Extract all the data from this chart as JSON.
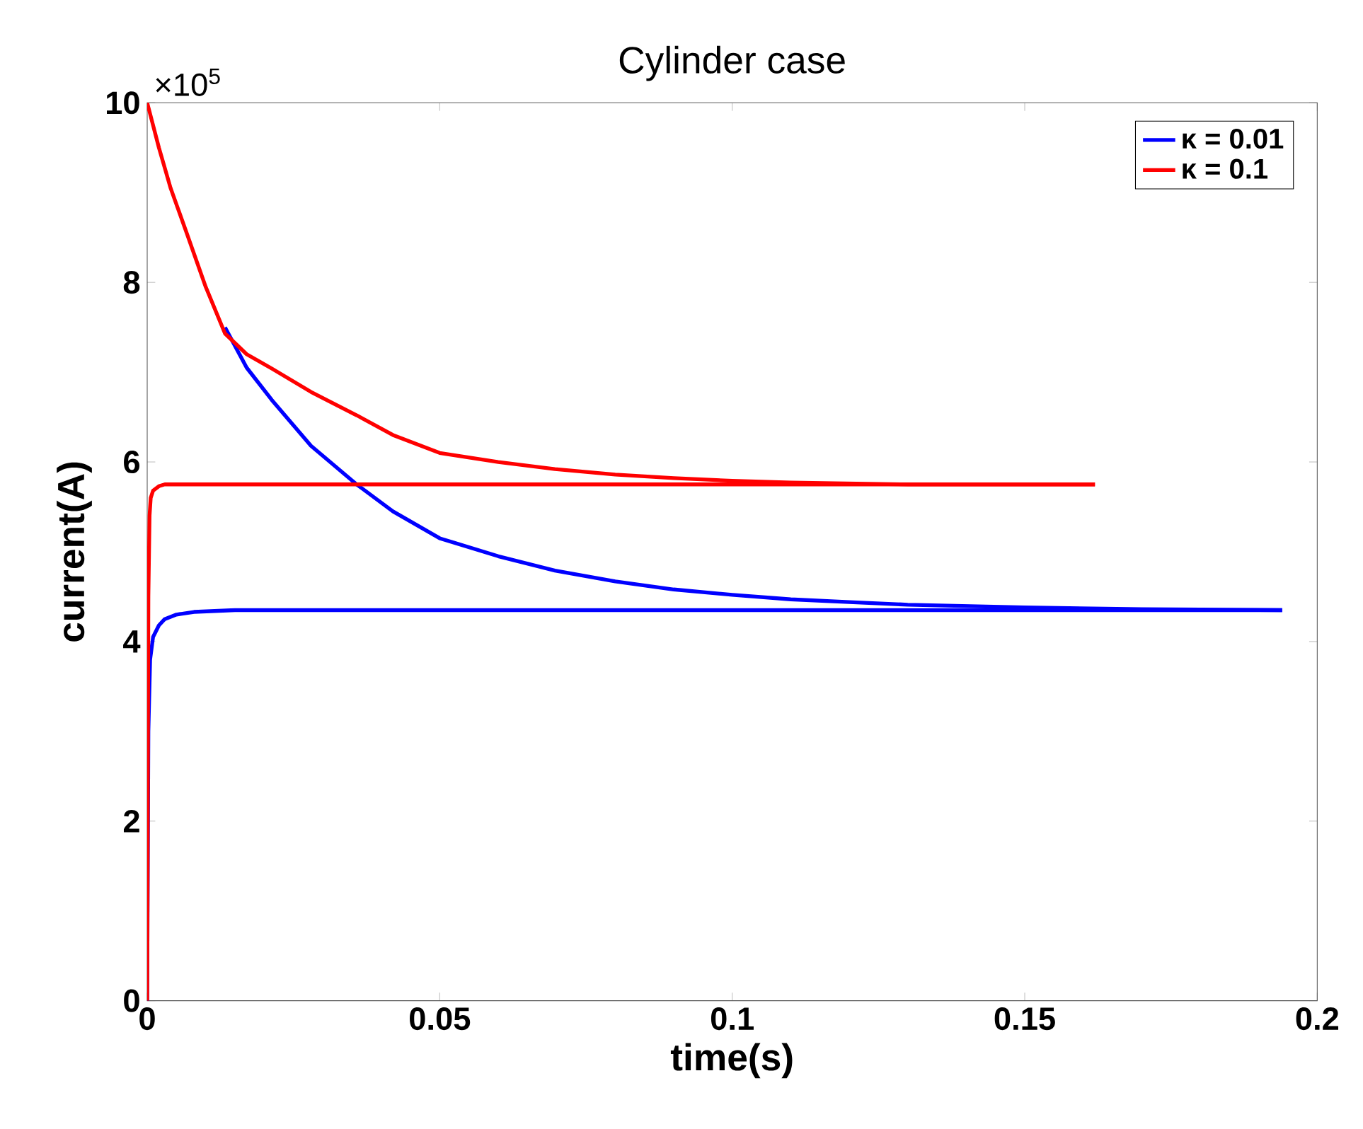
{
  "chart_data": {
    "type": "line",
    "title": "Cylinder case",
    "xlabel": "time(s)",
    "ylabel": "current(A)",
    "annotations": [
      "×10$^{5}$"
    ],
    "xlim": [
      0,
      0.2
    ],
    "ylim": [
      0,
      10
    ],
    "xticks": [
      0,
      0.05,
      0.1,
      0.15,
      0.2
    ],
    "yticks": [
      0,
      2,
      4,
      6,
      8,
      10
    ],
    "grid": false,
    "legend": "top right",
    "marker": "none",
    "line_style": "solid",
    "series": [
      {
        "name": "κ = 0.01",
        "color": "#0000ff",
        "x": [
          0.0133,
          0.017,
          0.0213,
          0.028,
          0.0358,
          0.042,
          0.05,
          0.06,
          0.0697,
          0.08,
          0.09,
          0.1,
          0.11,
          0.12,
          0.13,
          0.15,
          0.17,
          0.194
        ],
        "values": [
          7.5,
          7.05,
          6.69,
          6.18,
          5.75,
          5.45,
          5.15,
          4.95,
          4.79,
          4.67,
          4.58,
          4.52,
          4.47,
          4.44,
          4.41,
          4.38,
          4.36,
          4.35
        ]
      },
      {
        "name": "κ = 0.1",
        "color": "#ff0000",
        "x": [
          0,
          0.002,
          0.004,
          0.0068,
          0.01,
          0.0133,
          0.017,
          0.0213,
          0.028,
          0.0358,
          0.042,
          0.05,
          0.06,
          0.0697,
          0.08,
          0.09,
          0.1,
          0.11,
          0.13,
          0.162
        ],
        "values": [
          10,
          9.5,
          9.05,
          8.54,
          7.95,
          7.43,
          7.2,
          7.04,
          6.78,
          6.52,
          6.3,
          6.1,
          6.0,
          5.92,
          5.86,
          5.82,
          5.79,
          5.77,
          5.75,
          5.75
        ]
      },
      {
        "color": "#0000ff",
        "x": [
          0,
          0.0002,
          0.0005,
          0.001,
          0.002,
          0.003,
          0.005,
          0.008,
          0.015,
          0.194
        ],
        "values": [
          0,
          3.0,
          3.8,
          4.05,
          4.18,
          4.25,
          4.3,
          4.33,
          4.35,
          4.35
        ]
      },
      {
        "color": "#ff0000",
        "x": [
          0,
          0.0002,
          0.0004,
          0.0006,
          0.001,
          0.002,
          0.003,
          0.162
        ],
        "values": [
          0,
          4.5,
          5.4,
          5.6,
          5.68,
          5.73,
          5.75,
          5.75
        ]
      }
    ]
  }
}
